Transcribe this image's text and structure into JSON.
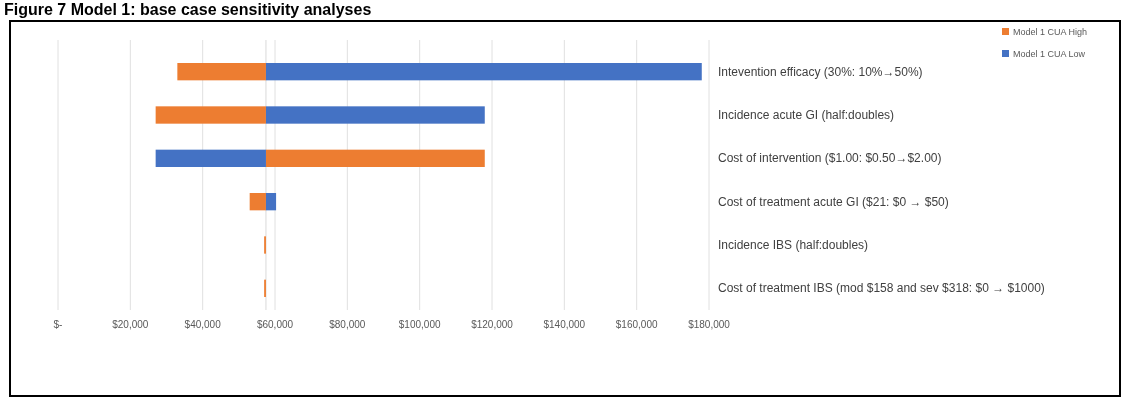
{
  "chart_data": {
    "type": "bar",
    "orientation": "horizontal",
    "title": "Figure 7          Model 1: base case sensitivity analyses",
    "categories": [
      "Intevention efficacy (30%: 10%→50%)",
      "Incidence acute GI (half:doubles)",
      "Cost of intervention ($1.00: $0.50→$2.00)",
      "Cost of treatment acute GI ($21: $0 → $50)",
      "Incidence IBS (half:doubles)",
      "Cost of treatment IBS (mod $158 and sev $318: $0 → $1000)"
    ],
    "series": [
      {
        "name": "Model 1 CUA High",
        "color": "#ed7d31",
        "base": [
          57500,
          57500,
          57500,
          57500,
          57500,
          57500
        ],
        "values": [
          -24500,
          -30500,
          60500,
          -4500,
          -500,
          -500
        ]
      },
      {
        "name": "Model 1 CUA Low",
        "color": "#4472c4",
        "base": [
          57500,
          57500,
          57500,
          57500,
          null,
          null
        ],
        "values": [
          120500,
          60500,
          -30500,
          2800,
          null,
          null
        ]
      }
    ],
    "xlim": [
      0,
      180000
    ],
    "xticks": [
      {
        "value": 0,
        "label": "$-"
      },
      {
        "value": 20000,
        "label": "$20,000"
      },
      {
        "value": 40000,
        "label": "$40,000"
      },
      {
        "value": 60000,
        "label": "$60,000"
      },
      {
        "value": 80000,
        "label": "$80,000"
      },
      {
        "value": 100000,
        "label": "$100,000"
      },
      {
        "value": 120000,
        "label": "$120,000"
      },
      {
        "value": 140000,
        "label": "$140,000"
      },
      {
        "value": 160000,
        "label": "$160,000"
      },
      {
        "value": 180000,
        "label": "$180,000"
      }
    ],
    "ref_lines": [
      {
        "axis": "x",
        "value": 57500,
        "color": "#d9d9d9"
      }
    ],
    "grid": "x",
    "legend": "top right"
  }
}
